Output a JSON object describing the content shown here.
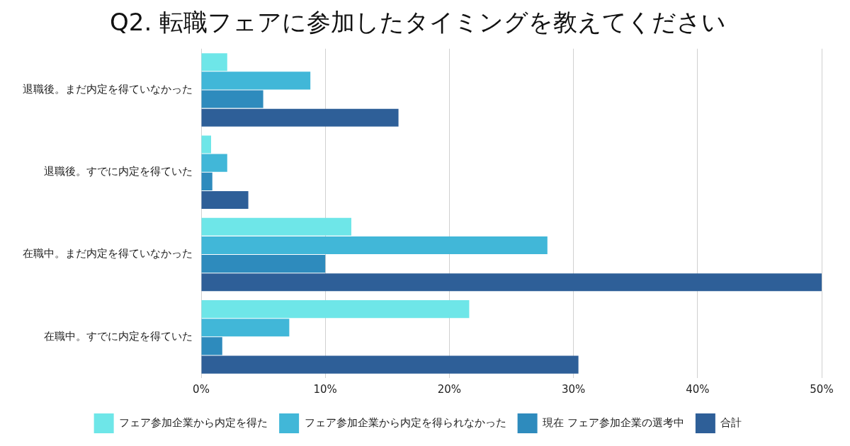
{
  "chart_data": {
    "type": "bar",
    "orientation": "horizontal",
    "title": "Q2. 転職フェアに参加したタイミングを教えてください",
    "categories": [
      "退職後。まだ内定を得ていなかった",
      "退職後。すでに内定を得ていた",
      "在職中。まだ内定を得ていなかった",
      "在職中。すでに内定を得ていた"
    ],
    "series": [
      {
        "name": "フェア参加企業から内定を得た",
        "color": "#6ee6e8",
        "values": [
          2.1,
          0.8,
          12.1,
          21.6
        ]
      },
      {
        "name": "フェア参加企業から内定を得られなかった",
        "color": "#41b7d8",
        "values": [
          8.8,
          2.1,
          27.9,
          7.1
        ]
      },
      {
        "name": "現在 フェア参加企業の選考中",
        "color": "#2e8bbd",
        "values": [
          5.0,
          0.9,
          10.0,
          1.7
        ]
      },
      {
        "name": "合計",
        "color": "#2e5f98",
        "values": [
          15.9,
          3.8,
          50.0,
          30.4
        ]
      }
    ],
    "xlim": [
      0,
      50
    ],
    "xticks": [
      {
        "value": 0,
        "label": "0%"
      },
      {
        "value": 10,
        "label": "10%"
      },
      {
        "value": 20,
        "label": "20%"
      },
      {
        "value": 30,
        "label": "30%"
      },
      {
        "value": 40,
        "label": "40%"
      },
      {
        "value": 50,
        "label": "50%"
      }
    ],
    "grid": true,
    "legend": "bottom"
  }
}
